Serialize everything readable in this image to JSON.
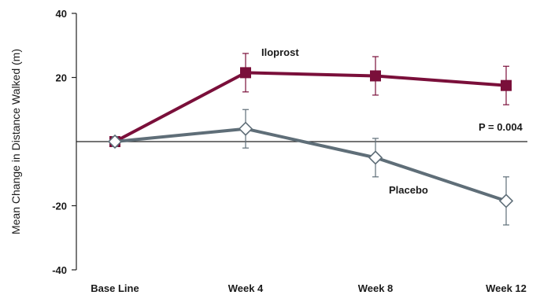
{
  "chart_data": {
    "type": "line",
    "title": "",
    "xlabel": "",
    "ylabel": "Mean Change in Distance Walked (m)",
    "categories": [
      "Base Line",
      "Week 4",
      "Week 8",
      "Week 12"
    ],
    "ylim": [
      -40,
      40
    ],
    "yticks": [
      40,
      20,
      -20,
      -40
    ],
    "grid": false,
    "zero_line": true,
    "series": [
      {
        "name": "Iloprost",
        "color": "#7a0f3a",
        "marker": "filled-square",
        "values": [
          0,
          21.5,
          20.5,
          17.5
        ],
        "err": [
          1.5,
          6,
          6,
          6
        ]
      },
      {
        "name": "Placebo",
        "color": "#5f6e78",
        "marker": "open-diamond",
        "values": [
          0,
          4,
          -5,
          -18.5
        ],
        "err": [
          1.5,
          6,
          6,
          7.5
        ]
      }
    ],
    "annotations": [
      {
        "text": "P = 0.004"
      }
    ]
  }
}
